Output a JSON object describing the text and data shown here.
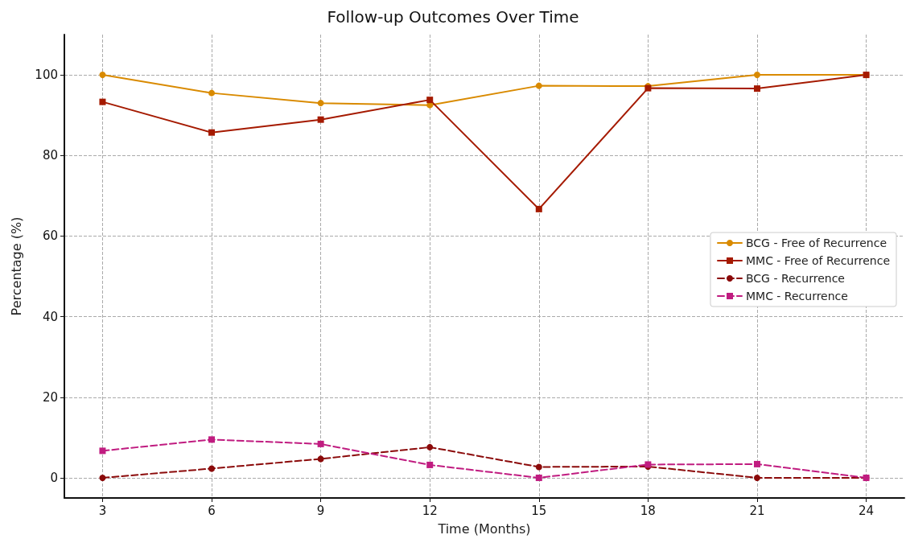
{
  "chart_data": {
    "type": "line",
    "title": "Follow-up Outcomes Over Time",
    "xlabel": "Time (Months)",
    "ylabel": "Percentage (%)",
    "x": [
      3,
      6,
      9,
      12,
      15,
      18,
      21,
      24
    ],
    "xlim": [
      1.95,
      25.05
    ],
    "xticks": [
      3,
      6,
      9,
      12,
      15,
      18,
      21,
      24
    ],
    "ylim": [
      -5,
      110
    ],
    "yticks": [
      0,
      20,
      40,
      60,
      80,
      100
    ],
    "grid": true,
    "legend": "right",
    "series": [
      {
        "name": "BCG - Free of Recurrence",
        "color": "#d98a00",
        "marker": "circle",
        "line_style": "solid",
        "values": [
          100,
          95.5,
          93,
          92.5,
          97.3,
          97.2,
          100,
          100
        ]
      },
      {
        "name": "MMC - Free of Recurrence",
        "color": "#a51a00",
        "marker": "square",
        "line_style": "solid",
        "values": [
          93.3,
          85.7,
          88.9,
          93.8,
          66.7,
          96.7,
          96.6,
          100
        ]
      },
      {
        "name": "BCG - Recurrence",
        "color": "#8b0a0a",
        "marker": "circle",
        "line_style": "dashed",
        "values": [
          0,
          2.3,
          4.7,
          7.6,
          2.7,
          2.8,
          0,
          0
        ]
      },
      {
        "name": "MMC - Recurrence",
        "color": "#c01c80",
        "marker": "square",
        "line_style": "dashed",
        "values": [
          6.7,
          9.5,
          8.4,
          3.2,
          0,
          3.3,
          3.4,
          0
        ]
      }
    ]
  }
}
